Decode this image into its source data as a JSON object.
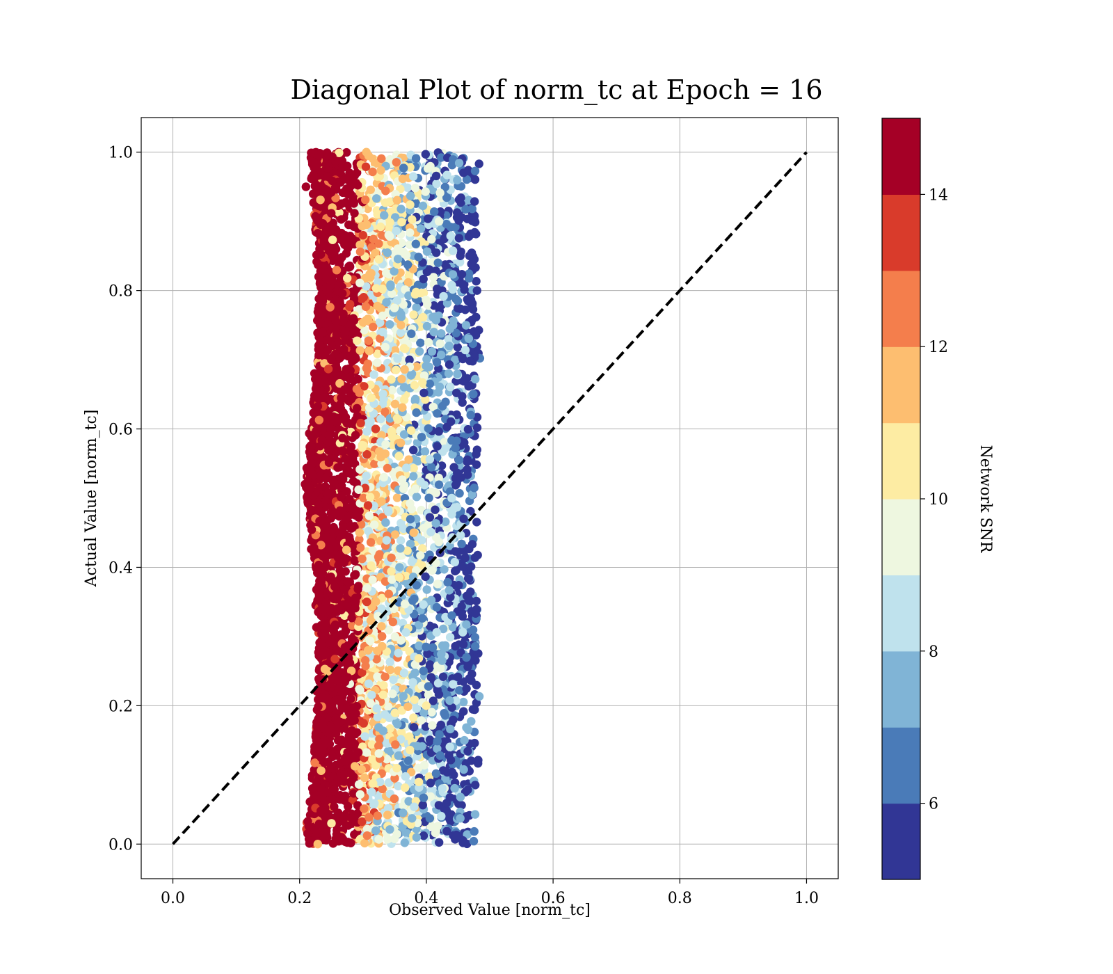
{
  "chart_data": {
    "type": "scatter",
    "title": "Diagonal Plot of norm_tc at Epoch = 16",
    "xlabel": "Observed Value [norm_tc]",
    "ylabel": "Actual Value [norm_tc]",
    "xlim": [
      -0.05,
      1.05
    ],
    "ylim": [
      -0.05,
      1.05
    ],
    "xticks": [
      "0.0",
      "0.2",
      "0.4",
      "0.6",
      "0.8",
      "1.0"
    ],
    "yticks": [
      "0.0",
      "0.2",
      "0.4",
      "0.6",
      "0.8",
      "1.0"
    ],
    "xtick_values": [
      0.0,
      0.2,
      0.4,
      0.6,
      0.8,
      1.0
    ],
    "ytick_values": [
      0.0,
      0.2,
      0.4,
      0.6,
      0.8,
      1.0
    ],
    "grid": true,
    "reference_line": {
      "x": [
        0.0,
        1.0
      ],
      "y": [
        0.0,
        1.0
      ],
      "style": "dashed",
      "color": "#000000"
    },
    "scatter_summary": {
      "x_range": [
        0.2,
        0.49
      ],
      "y_range": [
        0.0,
        1.0
      ],
      "note_colors": "high SNR points concentrated at x≈0.2–0.3; lower SNR toward x≈0.45"
    },
    "sample_points": [
      {
        "x": 0.21,
        "y": 0.95,
        "snr": 15
      },
      {
        "x": 0.23,
        "y": 0.82,
        "snr": 15
      },
      {
        "x": 0.25,
        "y": 0.7,
        "snr": 15
      },
      {
        "x": 0.22,
        "y": 0.55,
        "snr": 15
      },
      {
        "x": 0.24,
        "y": 0.4,
        "snr": 15
      },
      {
        "x": 0.26,
        "y": 0.25,
        "snr": 15
      },
      {
        "x": 0.27,
        "y": 0.1,
        "snr": 15
      },
      {
        "x": 0.3,
        "y": 0.88,
        "snr": 13
      },
      {
        "x": 0.32,
        "y": 0.6,
        "snr": 13
      },
      {
        "x": 0.33,
        "y": 0.3,
        "snr": 12
      },
      {
        "x": 0.36,
        "y": 0.75,
        "snr": 11
      },
      {
        "x": 0.38,
        "y": 0.45,
        "snr": 11
      },
      {
        "x": 0.4,
        "y": 0.2,
        "snr": 10
      },
      {
        "x": 0.42,
        "y": 0.9,
        "snr": 9
      },
      {
        "x": 0.44,
        "y": 0.5,
        "snr": 8
      },
      {
        "x": 0.46,
        "y": 0.15,
        "snr": 7
      },
      {
        "x": 0.47,
        "y": 0.62,
        "snr": 6
      },
      {
        "x": 0.48,
        "y": 0.8,
        "snr": 5
      }
    ],
    "colorbar": {
      "label": "Network SNR",
      "vmin": 5,
      "vmax": 15,
      "ticks": [
        "6",
        "8",
        "10",
        "12",
        "14"
      ],
      "tick_values": [
        6,
        8,
        10,
        12,
        14
      ],
      "colors": [
        "#313695",
        "#4a7bb8",
        "#80b4d6",
        "#bfe2ed",
        "#eef7e0",
        "#fdeca3",
        "#fdbe70",
        "#f47e4c",
        "#d93b2b",
        "#a50026"
      ]
    }
  }
}
